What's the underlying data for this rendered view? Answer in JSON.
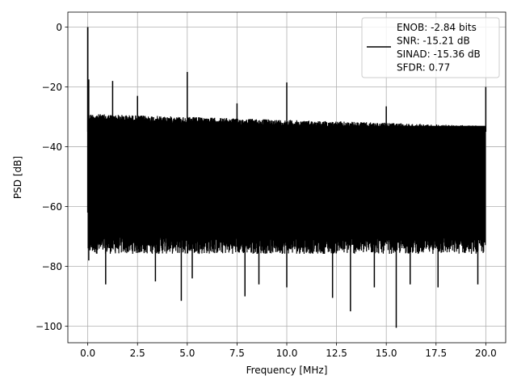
{
  "chart_data": {
    "type": "line",
    "title": "",
    "xlabel": "Frequency [MHz]",
    "ylabel": "PSD [dB]",
    "xlim": [
      -1.0,
      21.0
    ],
    "ylim": [
      -105.5,
      5.0
    ],
    "x_ticks": [
      0.0,
      2.5,
      5.0,
      7.5,
      10.0,
      12.5,
      15.0,
      17.5,
      20.0
    ],
    "x_tick_labels": [
      "0.0",
      "2.5",
      "5.0",
      "7.5",
      "10.0",
      "12.5",
      "15.0",
      "17.5",
      "20.0"
    ],
    "y_ticks": [
      0,
      -20,
      -40,
      -60,
      -80,
      -100
    ],
    "y_tick_labels": [
      "0",
      "−20",
      "−40",
      "−60",
      "−80",
      "−100"
    ],
    "grid": true,
    "legend_position": "top-right",
    "series_color": "#000000",
    "legend_lines": [
      "ENOB: -2.84 bits",
      "SNR: -15.21 dB",
      "SINAD: -15.36 dB",
      "SFDR: 0.77"
    ],
    "spikes": [
      {
        "x": 0.0,
        "y": 0
      },
      {
        "x": 0.05,
        "y": -17.5
      },
      {
        "x": 1.25,
        "y": -18
      },
      {
        "x": 2.5,
        "y": -23
      },
      {
        "x": 5.0,
        "y": -15
      },
      {
        "x": 7.5,
        "y": -25.5
      },
      {
        "x": 10.0,
        "y": -18.5
      },
      {
        "x": 15.0,
        "y": -26.5
      },
      {
        "x": 20.0,
        "y": -20
      }
    ],
    "noise_upper": [
      {
        "x": 0.0,
        "y": -29
      },
      {
        "x": 10.0,
        "y": -31
      },
      {
        "x": 20.0,
        "y": -33
      }
    ],
    "noise_lower_typical": -74,
    "deep_dips": [
      {
        "x": 0.05,
        "y": -78
      },
      {
        "x": 0.9,
        "y": -86
      },
      {
        "x": 3.4,
        "y": -85
      },
      {
        "x": 4.7,
        "y": -91.5
      },
      {
        "x": 5.25,
        "y": -84
      },
      {
        "x": 7.9,
        "y": -90
      },
      {
        "x": 8.6,
        "y": -86
      },
      {
        "x": 10.0,
        "y": -87
      },
      {
        "x": 12.3,
        "y": -90.5
      },
      {
        "x": 13.2,
        "y": -95
      },
      {
        "x": 14.4,
        "y": -87
      },
      {
        "x": 15.5,
        "y": -100.5
      },
      {
        "x": 16.2,
        "y": -86
      },
      {
        "x": 17.6,
        "y": -87
      },
      {
        "x": 19.6,
        "y": -86
      }
    ]
  }
}
